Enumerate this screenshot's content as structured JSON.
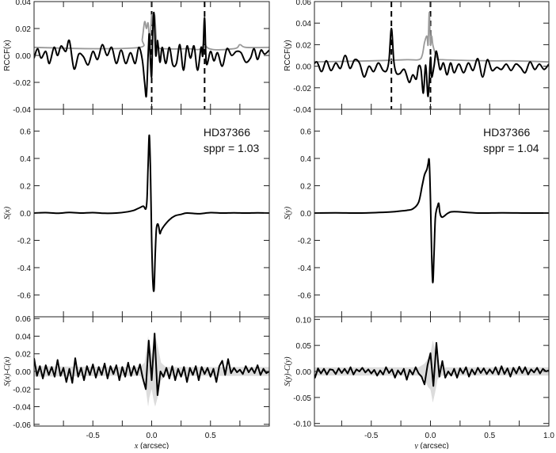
{
  "chart_data": [
    {
      "id": "rccf-x",
      "type": "line",
      "ylabel": "RCCF(x)",
      "xlim": [
        -1,
        1
      ],
      "ylim": [
        -0.04,
        0.04
      ],
      "yticks": [
        "0.04",
        "0.02",
        "0.00",
        "-0.02",
        "-0.04"
      ],
      "ytick_values": [
        0.04,
        0.02,
        0,
        -0.02,
        -0.04
      ],
      "xticks": [],
      "xtick_values": [],
      "minor_x": [
        -0.75,
        -0.5,
        -0.25,
        0,
        0.25,
        0.5,
        0.75
      ],
      "vlines": [
        0,
        0.45
      ],
      "series": [
        {
          "name": "gray",
          "color": "#999999",
          "x": [
            -1,
            -0.5,
            -0.1,
            -0.08,
            -0.06,
            -0.045,
            -0.03,
            -0.015,
            0,
            0.01,
            0.025,
            0.04,
            0.06,
            0.1,
            0.3,
            0.43,
            0.45,
            0.47,
            0.7,
            0.75,
            0.8,
            1.0
          ],
          "y": [
            0.006,
            0.005,
            0.006,
            0.012,
            0.025,
            0.02,
            0.024,
            0.01,
            0.03,
            0.022,
            0.03,
            0.012,
            0.006,
            0.005,
            0.005,
            0.006,
            0.024,
            0.006,
            0.005,
            0.008,
            0.006,
            0.006
          ]
        },
        {
          "name": "black",
          "color": "#000000",
          "x": [
            -1,
            -0.97,
            -0.94,
            -0.9,
            -0.87,
            -0.83,
            -0.8,
            -0.77,
            -0.73,
            -0.7,
            -0.66,
            -0.62,
            -0.58,
            -0.54,
            -0.5,
            -0.46,
            -0.42,
            -0.38,
            -0.34,
            -0.3,
            -0.26,
            -0.22,
            -0.18,
            -0.14,
            -0.11,
            -0.08,
            -0.06,
            -0.045,
            -0.03,
            -0.02,
            -0.01,
            0,
            0.01,
            0.02,
            0.035,
            0.05,
            0.07,
            0.09,
            0.12,
            0.15,
            0.18,
            0.21,
            0.24,
            0.27,
            0.3,
            0.33,
            0.36,
            0.39,
            0.42,
            0.435,
            0.45,
            0.465,
            0.5,
            0.53,
            0.56,
            0.6,
            0.64,
            0.68,
            0.72,
            0.76,
            0.8,
            0.84,
            0.87,
            0.9,
            0.93,
            0.96,
            1.0
          ],
          "y": [
            -0.002,
            0.005,
            -0.002,
            0.003,
            -0.006,
            0.006,
            0.0,
            0.007,
            0.003,
            0.011,
            -0.01,
            0.001,
            -0.001,
            -0.007,
            0.003,
            -0.003,
            0.008,
            0.0,
            0.006,
            -0.006,
            0.004,
            -0.006,
            0.002,
            -0.006,
            0.006,
            -0.003,
            -0.02,
            -0.03,
            0.0,
            0.016,
            -0.005,
            -0.015,
            0.02,
            0.031,
            0.0,
            0.011,
            -0.005,
            0.006,
            -0.006,
            0.006,
            -0.007,
            -0.006,
            0.008,
            -0.011,
            0.007,
            -0.002,
            0.007,
            -0.011,
            0.006,
            0.0,
            0.028,
            -0.006,
            0.003,
            -0.004,
            0.002,
            -0.008,
            0.005,
            0.0,
            0.003,
            0.002,
            -0.005,
            -0.002,
            0.005,
            -0.003,
            0.004,
            0.001,
            0.004
          ]
        }
      ]
    },
    {
      "id": "s-x",
      "type": "line",
      "ylabel": "S(x)",
      "xlim": [
        -1,
        1
      ],
      "ylim": [
        -0.76,
        0.76
      ],
      "yticks": [
        "0.6",
        "0.4",
        "0.2",
        "0.0",
        "-0.2",
        "-0.4",
        "-0.6"
      ],
      "ytick_values": [
        0.6,
        0.4,
        0.2,
        0,
        -0.2,
        -0.4,
        -0.6
      ],
      "xticks": [],
      "xtick_values": [],
      "minor_x": [
        -0.75,
        -0.5,
        -0.25,
        0,
        0.25,
        0.5,
        0.75
      ],
      "annotations": [
        "HD37366",
        "sppr = 1.03"
      ],
      "series": [
        {
          "name": "black",
          "color": "#000000",
          "x": [
            -1,
            -0.9,
            -0.8,
            -0.7,
            -0.6,
            -0.5,
            -0.4,
            -0.3,
            -0.2,
            -0.15,
            -0.1,
            -0.07,
            -0.05,
            -0.04,
            -0.03,
            -0.02,
            -0.01,
            0,
            0.01,
            0.02,
            0.03,
            0.04,
            0.05,
            0.06,
            0.07,
            0.08,
            0.1,
            0.15,
            0.2,
            0.25,
            0.3,
            0.4,
            0.5,
            0.6,
            0.7,
            0.8,
            0.9,
            1.0
          ],
          "y": [
            0.0,
            0.003,
            -0.002,
            0.004,
            0.0,
            0.003,
            -0.002,
            0.0,
            0.01,
            0.02,
            0.04,
            0.05,
            0.03,
            0.1,
            0.35,
            0.57,
            0.3,
            -0.2,
            -0.5,
            -0.56,
            -0.3,
            -0.12,
            -0.08,
            -0.1,
            -0.15,
            -0.13,
            -0.1,
            -0.05,
            -0.02,
            -0.01,
            0.0,
            -0.005,
            0.003,
            0.0,
            0.002,
            0.0,
            0.002,
            0.0
          ]
        }
      ]
    },
    {
      "id": "res-x",
      "type": "line",
      "ylabel": "S(x)-C(x)",
      "xlabel_var": "x",
      "xlabel_unit": "(arcsec)",
      "xlim": [
        -1,
        1
      ],
      "ylim": [
        -0.062,
        0.062
      ],
      "yticks": [
        "0.06",
        "0.04",
        "0.02",
        "0.00",
        "-0.02",
        "-0.04",
        "-0.06"
      ],
      "ytick_values": [
        0.06,
        0.04,
        0.02,
        0,
        -0.02,
        -0.04,
        -0.06
      ],
      "xticks": [
        "-0.5",
        "0.0",
        "0.5"
      ],
      "xtick_values": [
        -0.5,
        0,
        0.5
      ],
      "minor_x": [
        -0.75,
        -0.25,
        0.25,
        0.75
      ],
      "band": {
        "x": [
          -1,
          -0.3,
          -0.1,
          -0.06,
          -0.04,
          -0.03,
          -0.02,
          0,
          0.02,
          0.03,
          0.05,
          0.08,
          0.12,
          0.3,
          1.0
        ],
        "upper": [
          0.006,
          0.005,
          0.005,
          0.01,
          0.03,
          0.04,
          0.03,
          0.02,
          0.035,
          0.04,
          0.03,
          0.01,
          0.005,
          0.005,
          0.005
        ],
        "lower": [
          -0.006,
          -0.005,
          -0.005,
          -0.01,
          -0.03,
          -0.04,
          -0.03,
          -0.02,
          -0.035,
          -0.04,
          -0.03,
          -0.01,
          -0.005,
          -0.005,
          -0.005
        ],
        "color": "#dcdcdc"
      },
      "series": [
        {
          "name": "black",
          "color": "#000000",
          "x_start": -1,
          "x_step": 0.025,
          "y": [
            0.015,
            -0.005,
            0.006,
            -0.008,
            0.007,
            -0.004,
            0.005,
            -0.006,
            0.013,
            -0.005,
            0.004,
            -0.012,
            0.003,
            -0.013,
            0.015,
            -0.006,
            0.004,
            -0.01,
            0.006,
            -0.004,
            0.008,
            -0.007,
            0.005,
            -0.004,
            0.009,
            -0.008,
            0.006,
            -0.003,
            0.007,
            -0.01,
            0.005,
            -0.006,
            0.01,
            -0.005,
            0.006,
            -0.004,
            0.008,
            -0.008,
            -0.02,
            0.035,
            -0.01,
            0.043,
            -0.027,
            0.0,
            -0.006,
            0.004,
            -0.008,
            0.006,
            -0.01,
            0.003,
            -0.006,
            0.005,
            -0.012,
            0.004,
            -0.004,
            0.006,
            -0.01,
            0.005,
            -0.003,
            0.004,
            -0.006,
            0.003,
            -0.012,
            0.006,
            0.012,
            -0.004,
            0.014,
            -0.002,
            0.004,
            -0.001,
            0.002,
            -0.003,
            0.006,
            -0.001,
            0.004,
            -0.002,
            0.007,
            -0.004,
            0.003,
            -0.002,
            0.0
          ]
        }
      ]
    },
    {
      "id": "rccf-y",
      "type": "line",
      "ylabel": "RCCF(y)",
      "xlim": [
        -0.98,
        1.0
      ],
      "ylim": [
        -0.04,
        0.06
      ],
      "yticks": [
        "0.06",
        "0.04",
        "0.02",
        "0.00",
        "-0.02",
        "-0.04"
      ],
      "ytick_values": [
        0.06,
        0.04,
        0.02,
        0,
        -0.02,
        -0.04
      ],
      "xticks": [],
      "xtick_values": [],
      "minor_x": [
        -0.75,
        -0.5,
        -0.25,
        0,
        0.25,
        0.5,
        0.75
      ],
      "vlines": [
        -0.33,
        0
      ],
      "series": [
        {
          "name": "gray",
          "color": "#999999",
          "x": [
            -1,
            -0.5,
            -0.2,
            -0.1,
            -0.07,
            -0.05,
            -0.03,
            -0.02,
            -0.01,
            0,
            0.01,
            0.02,
            0.04,
            0.06,
            0.1,
            0.5,
            0.7,
            1.0
          ],
          "y": [
            0.004,
            0.005,
            0.006,
            0.006,
            0.01,
            0.022,
            0.028,
            0.02,
            0.05,
            0.02,
            0.028,
            0.02,
            0.012,
            0.007,
            0.006,
            0.005,
            0.005,
            0.004
          ]
        },
        {
          "name": "black",
          "color": "#000000",
          "x": [
            -1,
            -0.96,
            -0.92,
            -0.88,
            -0.84,
            -0.8,
            -0.76,
            -0.72,
            -0.68,
            -0.64,
            -0.6,
            -0.56,
            -0.52,
            -0.48,
            -0.44,
            -0.4,
            -0.37,
            -0.35,
            -0.33,
            -0.31,
            -0.29,
            -0.26,
            -0.22,
            -0.18,
            -0.15,
            -0.12,
            -0.1,
            -0.08,
            -0.06,
            -0.04,
            -0.02,
            0,
            0.01,
            0.03,
            0.05,
            0.08,
            0.11,
            0.14,
            0.17,
            0.2,
            0.24,
            0.28,
            0.32,
            0.36,
            0.4,
            0.44,
            0.48,
            0.52,
            0.56,
            0.6,
            0.64,
            0.68,
            0.72,
            0.76,
            0.8,
            0.84,
            0.88,
            0.92,
            0.96,
            1.0
          ],
          "y": [
            -0.001,
            0.004,
            -0.005,
            0.005,
            -0.004,
            0.003,
            -0.002,
            0.01,
            -0.002,
            0.006,
            0.003,
            -0.01,
            0.0,
            -0.005,
            0.003,
            -0.004,
            -0.004,
            0.006,
            0.035,
            0.005,
            -0.006,
            -0.007,
            -0.003,
            -0.015,
            -0.008,
            -0.012,
            0.0,
            -0.003,
            -0.025,
            0.001,
            -0.028,
            0.008,
            -0.01,
            0.0,
            0.014,
            -0.003,
            0.003,
            -0.008,
            0.003,
            -0.006,
            0.002,
            -0.006,
            0.003,
            -0.004,
            0.007,
            -0.01,
            0.006,
            -0.004,
            -0.001,
            -0.003,
            0.002,
            -0.004,
            0.002,
            -0.001,
            -0.006,
            0.004,
            -0.003,
            0.002,
            -0.003,
            0.002
          ]
        }
      ]
    },
    {
      "id": "s-y",
      "type": "line",
      "ylabel": "S(y)",
      "xlim": [
        -0.98,
        1.0
      ],
      "ylim": [
        -0.76,
        0.76
      ],
      "yticks": [
        "0.6",
        "0.4",
        "0.2",
        "0.0",
        "-0.2",
        "-0.4",
        "-0.6"
      ],
      "ytick_values": [
        0.6,
        0.4,
        0.2,
        0,
        -0.2,
        -0.4,
        -0.6
      ],
      "xticks": [],
      "xtick_values": [],
      "minor_x": [
        -0.75,
        -0.5,
        -0.25,
        0,
        0.25,
        0.5,
        0.75
      ],
      "annotations": [
        "HD37366",
        "sppr = 1.04"
      ],
      "series": [
        {
          "name": "black",
          "color": "#000000",
          "x": [
            -1,
            -0.8,
            -0.6,
            -0.4,
            -0.3,
            -0.2,
            -0.15,
            -0.1,
            -0.07,
            -0.05,
            -0.03,
            -0.02,
            -0.01,
            0,
            0.01,
            0.02,
            0.03,
            0.04,
            0.05,
            0.06,
            0.07,
            0.08,
            0.1,
            0.15,
            0.2,
            0.4,
            0.6,
            0.8,
            1.0
          ],
          "y": [
            0.0,
            0.002,
            0.0,
            0.005,
            0.01,
            0.02,
            0.03,
            0.08,
            0.2,
            0.28,
            0.32,
            0.36,
            0.38,
            0.1,
            -0.3,
            -0.51,
            -0.3,
            -0.05,
            0.02,
            0.05,
            0.07,
            0.0,
            -0.03,
            0.0,
            0.01,
            0.0,
            0.002,
            0.0,
            0.0
          ]
        }
      ]
    },
    {
      "id": "res-y",
      "type": "line",
      "ylabel": "S(y)-C(y)",
      "xlabel_var": "y",
      "xlabel_unit": "(arcsec)",
      "xlim": [
        -0.98,
        1.0
      ],
      "ylim": [
        -0.105,
        0.105
      ],
      "yticks": [
        "0.10",
        "0.05",
        "0.00",
        "-0.05",
        "-0.10"
      ],
      "ytick_values": [
        0.1,
        0.05,
        0,
        -0.05,
        -0.1
      ],
      "xticks": [
        "-0.5",
        "0.0",
        "0.5",
        "1.0"
      ],
      "xtick_values": [
        -0.5,
        0,
        0.5,
        1.0
      ],
      "minor_x": [
        -0.75,
        -0.25,
        0.25,
        0.75
      ],
      "band": {
        "x": [
          -1,
          -0.1,
          -0.05,
          -0.02,
          0,
          0.02,
          0.04,
          0.06,
          0.1,
          1
        ],
        "upper": [
          0.008,
          0.008,
          0.015,
          0.025,
          0.035,
          0.06,
          0.04,
          0.015,
          0.008,
          0.008
        ],
        "lower": [
          -0.008,
          -0.008,
          -0.015,
          -0.03,
          -0.035,
          -0.06,
          -0.04,
          -0.015,
          -0.008,
          -0.008
        ],
        "color": "#dcdcdc"
      },
      "series": [
        {
          "name": "black",
          "color": "#000000",
          "x_start": -1,
          "x_step": 0.025,
          "y": [
            0.01,
            -0.012,
            0.006,
            -0.004,
            0.005,
            -0.006,
            0.004,
            0.003,
            -0.005,
            0.006,
            -0.003,
            0.005,
            -0.004,
            0.008,
            -0.006,
            0.004,
            0.0,
            0.007,
            -0.002,
            0.004,
            -0.004,
            0.003,
            -0.008,
            0.002,
            -0.006,
            0.008,
            -0.003,
            0.004,
            -0.012,
            0.002,
            -0.006,
            0.005,
            -0.016,
            0.003,
            -0.006,
            0.008,
            -0.004,
            -0.01,
            -0.025,
            0.012,
            0.035,
            -0.028,
            0.055,
            -0.01,
            0.02,
            -0.012,
            0.0,
            -0.008,
            0.005,
            -0.012,
            0.006,
            -0.004,
            0.008,
            -0.01,
            0.004,
            -0.006,
            0.007,
            -0.003,
            0.006,
            -0.005,
            0.004,
            -0.004,
            0.008,
            -0.006,
            0.01,
            -0.005,
            0.006,
            -0.01,
            0.007,
            -0.004,
            0.009,
            -0.003,
            0.008,
            -0.006,
            0.004,
            -0.002,
            0.007,
            -0.004,
            0.005,
            0.0,
            0.002
          ]
        }
      ]
    }
  ]
}
